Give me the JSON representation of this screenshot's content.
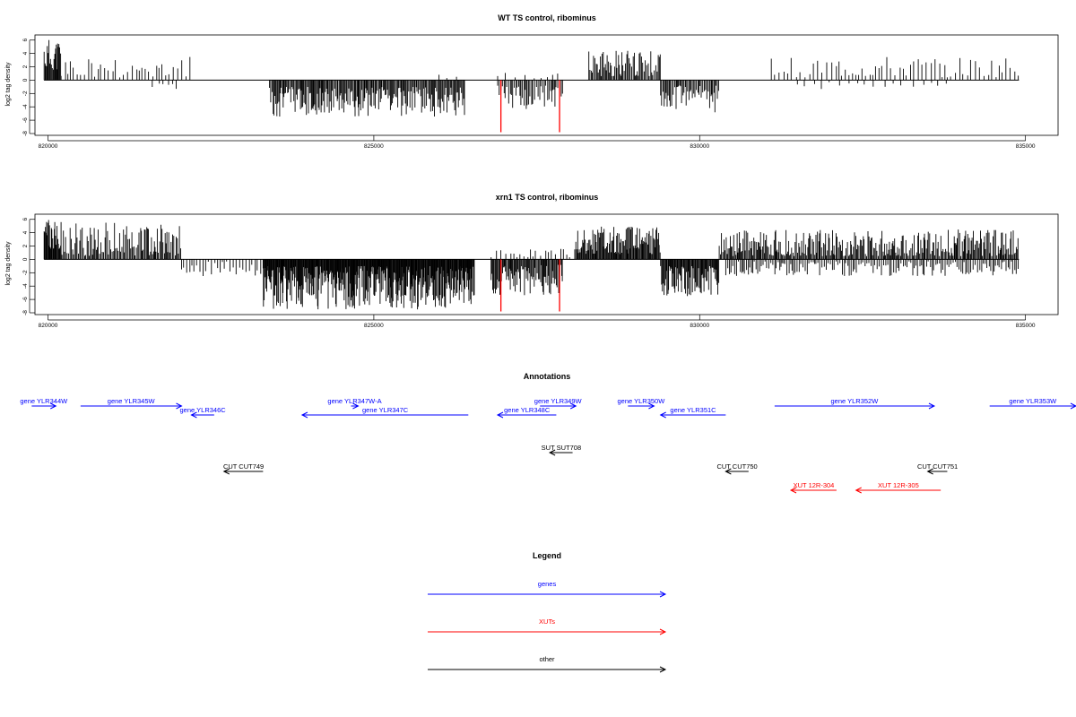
{
  "colors": {
    "gene": "#0000ff",
    "xut": "#ff0000",
    "other": "#000000",
    "marker": "#ff0000",
    "bar": "#000000"
  },
  "chart_data": [
    {
      "type": "bar",
      "title": "WT TS control, ribominus",
      "ylabel": "log2 tag density",
      "xlim": [
        819800,
        835500
      ],
      "ylim": [
        -8,
        6.5
      ],
      "yticks": [
        6,
        4,
        2,
        0,
        -2,
        -4,
        -6,
        -8
      ],
      "xticks": [
        820000,
        825000,
        830000,
        835000
      ],
      "xtick_labels": [
        "820000",
        "825000",
        "830000",
        "835000"
      ],
      "markers": [
        {
          "x": 826950,
          "y": -7.8
        },
        {
          "x": 827850,
          "y": -7.8
        }
      ],
      "regions": [
        {
          "from": 819940,
          "to": 820200,
          "sign": 1,
          "min": 1.5,
          "max": 6.3,
          "step": 12
        },
        {
          "from": 820200,
          "to": 822200,
          "sign": 1,
          "min": 0.4,
          "max": 3.8,
          "step": 55
        },
        {
          "from": 821600,
          "to": 822000,
          "sign": -1,
          "min": 0.4,
          "max": 1.6,
          "step": 90
        },
        {
          "from": 823400,
          "to": 826400,
          "sign": -1,
          "min": 1.0,
          "max": 5.5,
          "step": 15
        },
        {
          "from": 826000,
          "to": 826300,
          "sign": 1,
          "min": 0.3,
          "max": 1.4,
          "step": 110
        },
        {
          "from": 826900,
          "to": 827900,
          "sign": -1,
          "min": 0.8,
          "max": 4.6,
          "step": 22
        },
        {
          "from": 826900,
          "to": 827900,
          "sign": 1,
          "min": 0.2,
          "max": 1.2,
          "step": 120
        },
        {
          "from": 828300,
          "to": 829400,
          "sign": 1,
          "min": 0.6,
          "max": 4.4,
          "step": 18
        },
        {
          "from": 829400,
          "to": 830300,
          "sign": -1,
          "min": 0.8,
          "max": 5.0,
          "step": 18
        },
        {
          "from": 831100,
          "to": 834900,
          "sign": 1,
          "min": 0.4,
          "max": 3.5,
          "step": 60
        },
        {
          "from": 831500,
          "to": 833800,
          "sign": -1,
          "min": 0.3,
          "max": 1.4,
          "step": 140
        }
      ]
    },
    {
      "type": "bar",
      "title": "xrn1 TS control, ribominus",
      "ylabel": "log2 tag density",
      "xlim": [
        819800,
        835500
      ],
      "ylim": [
        -8,
        6.5
      ],
      "yticks": [
        6,
        4,
        2,
        0,
        -2,
        -4,
        -6,
        -8
      ],
      "xticks": [
        820000,
        825000,
        830000,
        835000
      ],
      "xtick_labels": [
        "820000",
        "825000",
        "830000",
        "835000"
      ],
      "markers": [
        {
          "x": 826950,
          "y": -7.8
        },
        {
          "x": 827850,
          "y": -7.8
        }
      ],
      "regions": [
        {
          "from": 819940,
          "to": 820200,
          "sign": 1,
          "min": 1.5,
          "max": 6.0,
          "step": 10
        },
        {
          "from": 820200,
          "to": 822050,
          "sign": 1,
          "min": 0.5,
          "max": 5.5,
          "step": 18
        },
        {
          "from": 822050,
          "to": 823300,
          "sign": -1,
          "min": 0.3,
          "max": 2.5,
          "step": 40
        },
        {
          "from": 823300,
          "to": 826550,
          "sign": -1,
          "min": 1.0,
          "max": 7.5,
          "step": 9
        },
        {
          "from": 826800,
          "to": 827900,
          "sign": -1,
          "min": 0.8,
          "max": 5.5,
          "step": 14
        },
        {
          "from": 826800,
          "to": 828100,
          "sign": 1,
          "min": 0.3,
          "max": 1.6,
          "step": 60
        },
        {
          "from": 828100,
          "to": 829400,
          "sign": 1,
          "min": 0.8,
          "max": 5.0,
          "step": 12
        },
        {
          "from": 829400,
          "to": 830300,
          "sign": -1,
          "min": 1.0,
          "max": 5.5,
          "step": 12
        },
        {
          "from": 830300,
          "to": 834900,
          "sign": 1,
          "min": 0.5,
          "max": 4.5,
          "step": 16
        },
        {
          "from": 830400,
          "to": 834900,
          "sign": -1,
          "min": 0.3,
          "max": 2.5,
          "step": 28
        }
      ]
    },
    {
      "type": "annotation_track",
      "title": "Annotations",
      "features": [
        {
          "label": "gene YLR344W",
          "type": "gene",
          "strand": "+",
          "from": 819750,
          "to": 820120,
          "row": 0
        },
        {
          "label": "gene YLR345W",
          "type": "gene",
          "strand": "+",
          "from": 820500,
          "to": 822050,
          "row": 0
        },
        {
          "label": "gene YLR346C",
          "type": "gene",
          "strand": "-",
          "from": 822200,
          "to": 822550,
          "row": 1
        },
        {
          "label": "gene YLR347W-A",
          "type": "gene",
          "strand": "+",
          "from": 824650,
          "to": 824700,
          "row": 0
        },
        {
          "label": "gene YLR347C",
          "type": "gene",
          "strand": "-",
          "from": 823900,
          "to": 826450,
          "row": 1
        },
        {
          "label": "gene YLR349W",
          "type": "gene",
          "strand": "+",
          "from": 827550,
          "to": 828100,
          "row": 0
        },
        {
          "label": "gene YLR348C",
          "type": "gene",
          "strand": "-",
          "from": 826900,
          "to": 827800,
          "row": 1
        },
        {
          "label": "gene YLR350W",
          "type": "gene",
          "strand": "+",
          "from": 828900,
          "to": 829300,
          "row": 0
        },
        {
          "label": "gene YLR351C",
          "type": "gene",
          "strand": "-",
          "from": 829400,
          "to": 830400,
          "row": 1
        },
        {
          "label": "gene YLR352W",
          "type": "gene",
          "strand": "+",
          "from": 831150,
          "to": 833600,
          "row": 0
        },
        {
          "label": "gene YLR353W",
          "type": "gene",
          "strand": "+",
          "from": 834450,
          "to": 835900,
          "row": 0
        },
        {
          "label": "SUT SUT708",
          "type": "other",
          "strand": "-",
          "from": 827700,
          "to": 828050,
          "row": 2
        },
        {
          "label": "CUT CUT749",
          "type": "other",
          "strand": "-",
          "from": 822700,
          "to": 823300,
          "row": 3
        },
        {
          "label": "CUT CUT750",
          "type": "other",
          "strand": "-",
          "from": 830400,
          "to": 830750,
          "row": 3
        },
        {
          "label": "CUT CUT751",
          "type": "other",
          "strand": "-",
          "from": 833500,
          "to": 833800,
          "row": 3
        },
        {
          "label": "XUT 12R-304",
          "type": "xut",
          "strand": "-",
          "from": 831400,
          "to": 832100,
          "row": 4
        },
        {
          "label": "XUT 12R-305",
          "type": "xut",
          "strand": "-",
          "from": 832400,
          "to": 833700,
          "row": 4
        }
      ]
    },
    {
      "type": "legend",
      "title": "Legend",
      "items": [
        {
          "label": "genes",
          "type": "gene"
        },
        {
          "label": "XUTs",
          "type": "xut"
        },
        {
          "label": "other",
          "type": "other"
        }
      ]
    }
  ]
}
